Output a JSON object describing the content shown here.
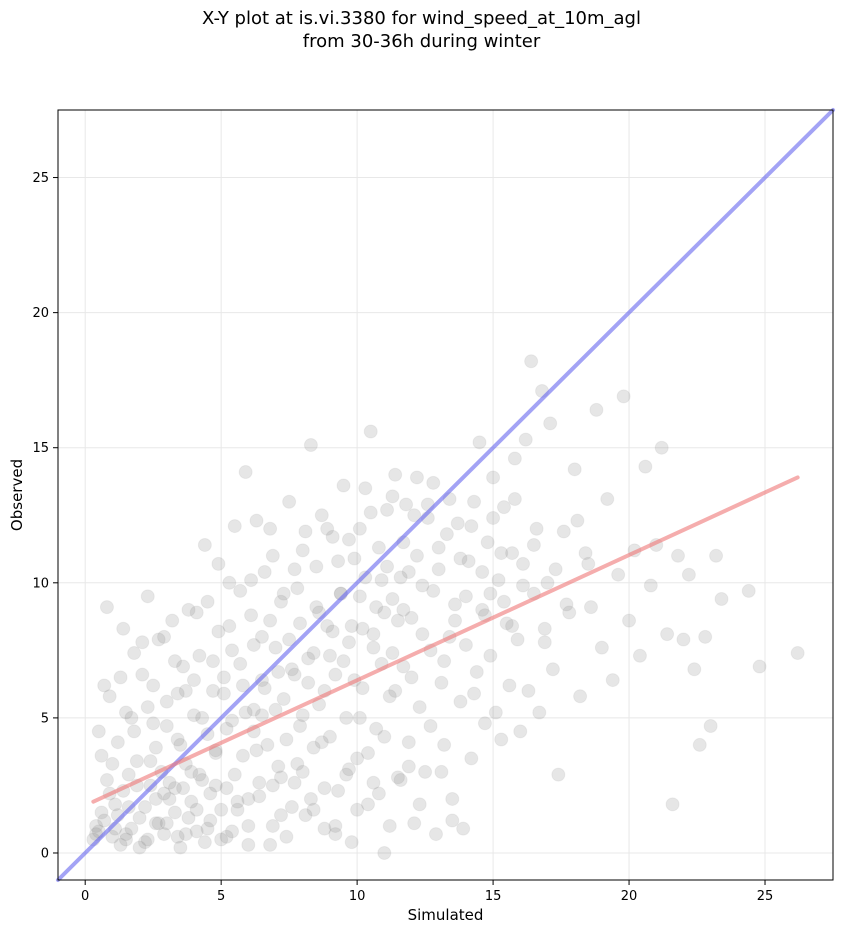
{
  "chart_data": {
    "type": "scatter",
    "title_line1": "X-Y plot at is.vi.3380 for wind_speed_at_10m_agl",
    "title_line2": "from 30-36h during winter",
    "xlabel": "Simulated",
    "ylabel": "Observed",
    "xlim": [
      -1,
      27.5
    ],
    "ylim": [
      -1,
      27.5
    ],
    "xticks": [
      0,
      5,
      10,
      15,
      20,
      25
    ],
    "yticks": [
      0,
      5,
      10,
      15,
      20,
      25
    ],
    "grid": true,
    "point_color": "#808080",
    "reference_lines": [
      {
        "kind": "one-to-one",
        "color": "#6666ee",
        "x": [
          -1,
          27.5
        ],
        "y": [
          -1,
          27.5
        ]
      },
      {
        "kind": "fit",
        "color": "#ee7777",
        "x": [
          0.3,
          26.2
        ],
        "y": [
          1.9,
          13.9
        ]
      }
    ],
    "points": [
      [
        0.3,
        0.5
      ],
      [
        0.4,
        1.0
      ],
      [
        0.5,
        0.8
      ],
      [
        0.6,
        3.6
      ],
      [
        0.7,
        6.2
      ],
      [
        0.8,
        9.1
      ],
      [
        0.9,
        2.2
      ],
      [
        1.0,
        0.6
      ],
      [
        1.1,
        1.8
      ],
      [
        1.2,
        4.1
      ],
      [
        1.3,
        0.3
      ],
      [
        1.4,
        8.3
      ],
      [
        1.5,
        5.2
      ],
      [
        1.6,
        2.9
      ],
      [
        1.7,
        0.9
      ],
      [
        1.8,
        7.4
      ],
      [
        1.9,
        3.4
      ],
      [
        2.0,
        1.3
      ],
      [
        2.1,
        6.6
      ],
      [
        2.2,
        0.4
      ],
      [
        2.3,
        9.5
      ],
      [
        2.4,
        2.5
      ],
      [
        2.5,
        4.8
      ],
      [
        2.6,
        1.1
      ],
      [
        2.7,
        7.9
      ],
      [
        2.8,
        3.0
      ],
      [
        2.9,
        0.7
      ],
      [
        3.0,
        5.6
      ],
      [
        3.1,
        2.0
      ],
      [
        3.2,
        8.6
      ],
      [
        3.3,
        1.5
      ],
      [
        3.4,
        4.2
      ],
      [
        3.5,
        0.2
      ],
      [
        3.6,
        6.9
      ],
      [
        3.7,
        3.3
      ],
      [
        3.8,
        9.0
      ],
      [
        3.9,
        1.9
      ],
      [
        4.0,
        5.1
      ],
      [
        4.1,
        0.8
      ],
      [
        4.2,
        7.3
      ],
      [
        4.3,
        2.7
      ],
      [
        4.4,
        11.4
      ],
      [
        4.5,
        4.4
      ],
      [
        4.6,
        1.2
      ],
      [
        4.7,
        6.0
      ],
      [
        4.8,
        3.8
      ],
      [
        4.9,
        8.2
      ],
      [
        5.0,
        0.5
      ],
      [
        5.1,
        5.9
      ],
      [
        5.2,
        2.4
      ],
      [
        5.3,
        10.0
      ],
      [
        5.4,
        4.9
      ],
      [
        5.5,
        12.1
      ],
      [
        5.6,
        1.6
      ],
      [
        5.7,
        7.0
      ],
      [
        5.8,
        3.6
      ],
      [
        5.9,
        14.1
      ],
      [
        6.0,
        0.3
      ],
      [
        6.1,
        8.8
      ],
      [
        6.2,
        5.3
      ],
      [
        6.3,
        12.3
      ],
      [
        6.4,
        2.1
      ],
      [
        6.5,
        6.4
      ],
      [
        6.6,
        10.4
      ],
      [
        6.7,
        4.0
      ],
      [
        6.8,
        12.0
      ],
      [
        6.9,
        1.0
      ],
      [
        7.0,
        7.6
      ],
      [
        7.1,
        3.2
      ],
      [
        7.2,
        9.3
      ],
      [
        7.3,
        5.7
      ],
      [
        7.4,
        0.6
      ],
      [
        7.5,
        13.0
      ],
      [
        7.6,
        6.8
      ],
      [
        7.7,
        2.6
      ],
      [
        7.8,
        9.8
      ],
      [
        7.9,
        4.7
      ],
      [
        8.0,
        11.2
      ],
      [
        8.1,
        1.4
      ],
      [
        8.2,
        7.2
      ],
      [
        8.3,
        15.1
      ],
      [
        8.4,
        3.9
      ],
      [
        8.5,
        10.6
      ],
      [
        8.6,
        5.5
      ],
      [
        8.7,
        12.5
      ],
      [
        8.8,
        0.9
      ],
      [
        8.9,
        8.4
      ],
      [
        9.0,
        4.3
      ],
      [
        9.1,
        11.7
      ],
      [
        9.2,
        6.6
      ],
      [
        9.3,
        2.3
      ],
      [
        9.4,
        9.6
      ],
      [
        9.5,
        13.6
      ],
      [
        9.6,
        5.0
      ],
      [
        9.7,
        7.8
      ],
      [
        9.8,
        0.4
      ],
      [
        9.9,
        10.9
      ],
      [
        10.0,
        3.5
      ],
      [
        10.1,
        12.0
      ],
      [
        10.2,
        6.1
      ],
      [
        10.3,
        13.5
      ],
      [
        10.4,
        1.8
      ],
      [
        10.5,
        15.6
      ],
      [
        10.6,
        8.1
      ],
      [
        10.7,
        4.6
      ],
      [
        10.8,
        11.3
      ],
      [
        10.9,
        7.0
      ],
      [
        11.0,
        0.0
      ],
      [
        11.1,
        12.7
      ],
      [
        11.2,
        5.8
      ],
      [
        11.3,
        9.4
      ],
      [
        11.4,
        14.0
      ],
      [
        11.5,
        2.8
      ],
      [
        11.6,
        10.2
      ],
      [
        11.7,
        6.9
      ],
      [
        11.8,
        12.9
      ],
      [
        11.9,
        4.1
      ],
      [
        12.0,
        8.7
      ],
      [
        12.1,
        1.1
      ],
      [
        12.2,
        11.0
      ],
      [
        12.3,
        5.4
      ],
      [
        12.4,
        9.9
      ],
      [
        12.5,
        3.0
      ],
      [
        12.6,
        12.4
      ],
      [
        12.7,
        7.5
      ],
      [
        12.8,
        13.7
      ],
      [
        12.9,
        0.7
      ],
      [
        13.0,
        10.5
      ],
      [
        13.1,
        6.3
      ],
      [
        13.2,
        4.0
      ],
      [
        13.3,
        11.8
      ],
      [
        13.4,
        8.0
      ],
      [
        13.5,
        2.0
      ],
      [
        13.6,
        9.2
      ],
      [
        13.7,
        12.2
      ],
      [
        13.8,
        5.6
      ],
      [
        13.9,
        0.9
      ],
      [
        14.0,
        7.7
      ],
      [
        14.1,
        10.8
      ],
      [
        14.2,
        3.5
      ],
      [
        14.3,
        13.0
      ],
      [
        14.4,
        6.7
      ],
      [
        14.5,
        15.2
      ],
      [
        14.6,
        9.0
      ],
      [
        14.7,
        4.8
      ],
      [
        14.8,
        11.5
      ],
      [
        14.9,
        7.3
      ],
      [
        15.0,
        13.9
      ],
      [
        15.1,
        5.2
      ],
      [
        15.2,
        10.1
      ],
      [
        15.3,
        4.2
      ],
      [
        15.4,
        12.8
      ],
      [
        15.5,
        8.5
      ],
      [
        15.6,
        6.2
      ],
      [
        15.7,
        11.1
      ],
      [
        15.8,
        14.6
      ],
      [
        15.9,
        7.9
      ],
      [
        16.0,
        4.5
      ],
      [
        16.1,
        10.7
      ],
      [
        16.2,
        15.3
      ],
      [
        16.3,
        6.0
      ],
      [
        16.4,
        18.2
      ],
      [
        16.5,
        9.6
      ],
      [
        16.6,
        12.0
      ],
      [
        16.7,
        5.2
      ],
      [
        16.8,
        17.1
      ],
      [
        16.9,
        8.3
      ],
      [
        17.0,
        10.0
      ],
      [
        17.1,
        15.9
      ],
      [
        17.2,
        6.8
      ],
      [
        17.4,
        2.9
      ],
      [
        17.6,
        11.9
      ],
      [
        17.8,
        8.9
      ],
      [
        18.0,
        14.2
      ],
      [
        18.2,
        5.8
      ],
      [
        18.4,
        11.1
      ],
      [
        18.6,
        9.1
      ],
      [
        18.8,
        16.4
      ],
      [
        19.0,
        7.6
      ],
      [
        19.2,
        13.1
      ],
      [
        19.4,
        6.4
      ],
      [
        19.6,
        10.3
      ],
      [
        19.8,
        16.9
      ],
      [
        20.0,
        8.6
      ],
      [
        20.2,
        11.2
      ],
      [
        20.4,
        7.3
      ],
      [
        20.6,
        14.3
      ],
      [
        20.8,
        9.9
      ],
      [
        21.0,
        11.4
      ],
      [
        21.2,
        15.0
      ],
      [
        21.4,
        8.1
      ],
      [
        21.6,
        1.8
      ],
      [
        21.8,
        11.0
      ],
      [
        22.0,
        7.9
      ],
      [
        22.2,
        10.3
      ],
      [
        22.4,
        6.8
      ],
      [
        22.6,
        4.0
      ],
      [
        22.8,
        8.0
      ],
      [
        23.0,
        4.7
      ],
      [
        23.2,
        11.0
      ],
      [
        23.4,
        9.4
      ],
      [
        24.4,
        9.7
      ],
      [
        24.8,
        6.9
      ],
      [
        26.2,
        7.4
      ],
      [
        1.5,
        0.5
      ],
      [
        2.2,
        1.7
      ],
      [
        2.9,
        2.2
      ],
      [
        3.4,
        0.6
      ],
      [
        3.9,
        3.0
      ],
      [
        4.6,
        2.2
      ],
      [
        5.0,
        1.6
      ],
      [
        5.4,
        0.8
      ],
      [
        6.0,
        2.0
      ],
      [
        6.3,
        3.8
      ],
      [
        6.9,
        2.5
      ],
      [
        7.2,
        1.4
      ],
      [
        7.8,
        3.3
      ],
      [
        8.3,
        2.0
      ],
      [
        8.7,
        4.1
      ],
      [
        9.2,
        1.0
      ],
      [
        9.7,
        3.1
      ],
      [
        10.1,
        5.0
      ],
      [
        10.6,
        2.6
      ],
      [
        11.0,
        4.3
      ],
      [
        11.4,
        6.0
      ],
      [
        11.9,
        3.2
      ],
      [
        12.3,
        1.8
      ],
      [
        12.7,
        4.7
      ],
      [
        13.1,
        3.0
      ],
      [
        13.5,
        1.2
      ],
      [
        0.5,
        4.5
      ],
      [
        0.9,
        5.8
      ],
      [
        1.3,
        6.5
      ],
      [
        1.7,
        5.0
      ],
      [
        2.1,
        7.8
      ],
      [
        2.5,
        6.2
      ],
      [
        2.9,
        8.0
      ],
      [
        3.3,
        7.1
      ],
      [
        3.7,
        6.0
      ],
      [
        4.1,
        8.9
      ],
      [
        4.5,
        9.3
      ],
      [
        4.9,
        10.7
      ],
      [
        5.3,
        8.4
      ],
      [
        5.7,
        9.7
      ],
      [
        6.1,
        10.1
      ],
      [
        6.5,
        8.0
      ],
      [
        6.9,
        11.0
      ],
      [
        7.3,
        9.6
      ],
      [
        7.7,
        10.5
      ],
      [
        8.1,
        11.9
      ],
      [
        8.5,
        9.1
      ],
      [
        8.9,
        12.0
      ],
      [
        9.3,
        10.8
      ],
      [
        9.7,
        11.6
      ],
      [
        10.1,
        9.5
      ],
      [
        10.5,
        12.6
      ],
      [
        10.9,
        10.1
      ],
      [
        11.3,
        13.2
      ],
      [
        11.7,
        11.5
      ],
      [
        12.1,
        12.5
      ],
      [
        0.6,
        1.5
      ],
      [
        0.8,
        2.7
      ],
      [
        1.1,
        0.9
      ],
      [
        1.6,
        1.7
      ],
      [
        2.0,
        0.2
      ],
      [
        2.4,
        3.4
      ],
      [
        2.7,
        1.1
      ],
      [
        3.1,
        2.6
      ],
      [
        3.5,
        4.0
      ],
      [
        3.8,
        1.3
      ],
      [
        4.2,
        2.9
      ],
      [
        4.4,
        0.4
      ],
      [
        4.8,
        3.7
      ],
      [
        5.2,
        4.6
      ],
      [
        5.5,
        2.9
      ],
      [
        5.9,
        5.2
      ],
      [
        6.2,
        4.5
      ],
      [
        6.6,
        6.1
      ],
      [
        7.0,
        5.3
      ],
      [
        7.4,
        4.2
      ],
      [
        7.7,
        6.6
      ],
      [
        8.0,
        5.1
      ],
      [
        8.4,
        7.4
      ],
      [
        8.8,
        6.0
      ],
      [
        9.1,
        8.2
      ],
      [
        9.5,
        7.1
      ],
      [
        9.9,
        6.4
      ],
      [
        10.2,
        8.3
      ],
      [
        10.6,
        7.6
      ],
      [
        11.0,
        8.9
      ],
      [
        11.3,
        7.4
      ],
      [
        11.7,
        9.0
      ],
      [
        12.0,
        6.5
      ],
      [
        12.4,
        8.1
      ],
      [
        12.8,
        9.7
      ],
      [
        13.2,
        7.1
      ],
      [
        13.6,
        8.6
      ],
      [
        14.0,
        9.5
      ],
      [
        14.3,
        5.9
      ],
      [
        14.7,
        8.8
      ],
      [
        1.0,
        3.3
      ],
      [
        1.4,
        2.3
      ],
      [
        1.8,
        4.5
      ],
      [
        2.3,
        5.4
      ],
      [
        2.6,
        3.9
      ],
      [
        3.0,
        4.7
      ],
      [
        3.4,
        5.9
      ],
      [
        3.6,
        2.4
      ],
      [
        4.0,
        6.4
      ],
      [
        4.3,
        5.0
      ],
      [
        4.7,
        7.1
      ],
      [
        5.1,
        6.5
      ],
      [
        5.4,
        7.5
      ],
      [
        5.8,
        6.2
      ],
      [
        6.2,
        7.7
      ],
      [
        6.5,
        5.1
      ],
      [
        6.8,
        8.6
      ],
      [
        7.1,
        6.7
      ],
      [
        7.5,
        7.9
      ],
      [
        7.9,
        8.5
      ],
      [
        8.2,
        6.3
      ],
      [
        8.6,
        8.9
      ],
      [
        9.0,
        7.3
      ],
      [
        9.4,
        9.6
      ],
      [
        9.8,
        8.4
      ],
      [
        10.3,
        10.2
      ],
      [
        10.7,
        9.1
      ],
      [
        11.1,
        10.6
      ],
      [
        11.5,
        8.6
      ],
      [
        11.9,
        10.4
      ],
      [
        0.4,
        0.7
      ],
      [
        0.7,
        1.2
      ],
      [
        1.2,
        1.4
      ],
      [
        1.5,
        0.7
      ],
      [
        1.9,
        2.5
      ],
      [
        2.3,
        0.5
      ],
      [
        2.6,
        2.0
      ],
      [
        3.0,
        1.1
      ],
      [
        3.3,
        2.4
      ],
      [
        3.7,
        0.7
      ],
      [
        4.1,
        1.6
      ],
      [
        4.5,
        0.9
      ],
      [
        4.8,
        2.5
      ],
      [
        5.2,
        0.6
      ],
      [
        5.6,
        1.9
      ],
      [
        6.0,
        1.0
      ],
      [
        6.4,
        2.6
      ],
      [
        6.8,
        0.3
      ],
      [
        7.2,
        2.8
      ],
      [
        7.6,
        1.7
      ],
      [
        8.0,
        3.0
      ],
      [
        8.4,
        1.6
      ],
      [
        8.8,
        2.4
      ],
      [
        9.2,
        0.7
      ],
      [
        9.6,
        2.9
      ],
      [
        10.0,
        1.6
      ],
      [
        10.4,
        3.7
      ],
      [
        10.8,
        2.2
      ],
      [
        11.2,
        1.0
      ],
      [
        11.6,
        2.7
      ],
      [
        14.9,
        9.6
      ],
      [
        15.3,
        11.1
      ],
      [
        15.7,
        8.4
      ],
      [
        16.1,
        9.9
      ],
      [
        16.5,
        11.4
      ],
      [
        16.9,
        7.8
      ],
      [
        17.3,
        10.5
      ],
      [
        17.7,
        9.2
      ],
      [
        18.1,
        12.3
      ],
      [
        18.5,
        10.7
      ],
      [
        12.2,
        13.9
      ],
      [
        12.6,
        12.9
      ],
      [
        13.0,
        11.3
      ],
      [
        13.4,
        13.1
      ],
      [
        13.8,
        10.9
      ],
      [
        14.2,
        12.1
      ],
      [
        14.6,
        10.4
      ],
      [
        15.0,
        12.4
      ],
      [
        15.4,
        9.3
      ],
      [
        15.8,
        13.1
      ]
    ]
  }
}
